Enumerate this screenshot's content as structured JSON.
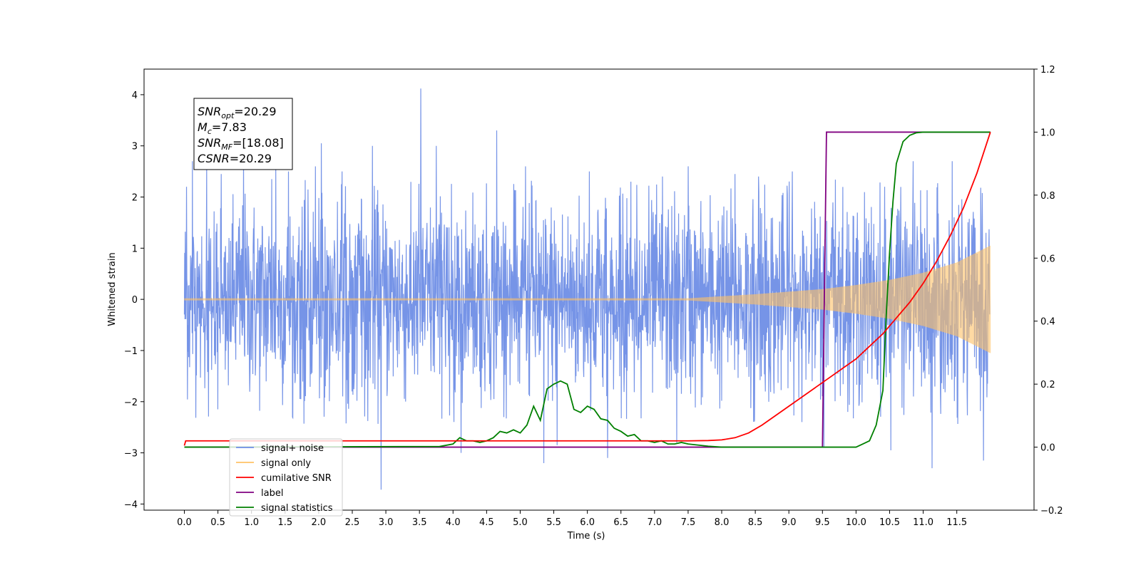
{
  "chart_data": {
    "type": "line",
    "xlabel": "Time (s)",
    "ylabel": "Whitened strain",
    "xlim": [
      -0.6,
      12.65
    ],
    "ylim": [
      -4.12,
      4.5
    ],
    "y2lim": [
      -0.2,
      1.2
    ],
    "x_ticks": [
      "0.0",
      "0.5",
      "1.0",
      "1.5",
      "2.0",
      "2.5",
      "3.0",
      "3.5",
      "4.0",
      "4.5",
      "5.0",
      "5.5",
      "6.0",
      "6.5",
      "7.0",
      "7.5",
      "8.0",
      "8.5",
      "9.0",
      "9.5",
      "10.0",
      "10.5",
      "11.0",
      "11.5"
    ],
    "y_ticks": [
      "4",
      "3",
      "2",
      "1",
      "0",
      "−1",
      "−2",
      "−3",
      "−4"
    ],
    "y2_ticks": [
      "1.2",
      "1.0",
      "0.8",
      "0.6",
      "0.4",
      "0.2",
      "0.0",
      "−0.2"
    ],
    "annotation": {
      "lines": [
        {
          "pre": "SNR",
          "sub": "opt",
          "post": "=20.29"
        },
        {
          "pre": "M",
          "sub": "c",
          "post": "=7.83"
        },
        {
          "pre": "SNR",
          "sub": "MF",
          "post": "=[18.08]"
        },
        {
          "pre": "CSNR",
          "sub": "",
          "post": "=20.29"
        }
      ]
    },
    "legend": {
      "position": "lower-left",
      "entries": [
        {
          "label": "signal+ noise",
          "color": "#6f8ee6"
        },
        {
          "label": "signal only",
          "color": "#ffc266"
        },
        {
          "label": "cumilative SNR",
          "color": "#ff0000"
        },
        {
          "label": "label",
          "color": "#800080"
        },
        {
          "label": "signal statistics",
          "color": "#008000"
        }
      ]
    },
    "series": [
      {
        "name": "signal+ noise",
        "axis": "left",
        "color": "#6f8ee6",
        "noise_band": {
          "x_start": 0.0,
          "x_end": 11.99,
          "typical_sd": 1.0,
          "max": 4.12,
          "min": -3.72
        },
        "spikes": [
          [
            0.03,
            2.2
          ],
          [
            0.12,
            2.7
          ],
          [
            0.33,
            2.6
          ],
          [
            0.55,
            2.45
          ],
          [
            0.88,
            2.8
          ],
          [
            1.3,
            2.35
          ],
          [
            1.36,
            2.6
          ],
          [
            1.55,
            2.5
          ],
          [
            1.95,
            2.6
          ],
          [
            2.04,
            3.05
          ],
          [
            2.35,
            2.5
          ],
          [
            2.8,
            3.0
          ],
          [
            2.93,
            -3.72
          ],
          [
            3.52,
            4.12
          ],
          [
            3.75,
            3.0
          ],
          [
            4.12,
            -3.0
          ],
          [
            4.65,
            3.3
          ],
          [
            5.08,
            2.6
          ],
          [
            5.35,
            -3.2
          ],
          [
            5.55,
            -2.85
          ],
          [
            6.03,
            2.5
          ],
          [
            6.3,
            -3.1
          ],
          [
            6.65,
            2.3
          ],
          [
            7.12,
            2.4
          ],
          [
            7.33,
            -2.8
          ],
          [
            7.5,
            2.6
          ],
          [
            8.2,
            2.45
          ],
          [
            8.55,
            2.4
          ],
          [
            9.05,
            2.5
          ],
          [
            9.52,
            -2.9
          ],
          [
            10.52,
            -2.95
          ],
          [
            10.85,
            2.7
          ],
          [
            11.13,
            -3.3
          ],
          [
            11.43,
            2.7
          ],
          [
            11.9,
            -3.15
          ]
        ]
      },
      {
        "name": "signal only",
        "axis": "left",
        "color": "#ffc266",
        "envelope": {
          "x": [
            0.0,
            7.5,
            8.0,
            8.5,
            9.0,
            9.5,
            10.0,
            10.5,
            11.0,
            11.5,
            12.0
          ],
          "amp": [
            0.02,
            0.02,
            0.06,
            0.1,
            0.15,
            0.2,
            0.28,
            0.38,
            0.52,
            0.72,
            1.05
          ]
        }
      },
      {
        "name": "cumilative SNR",
        "axis": "right",
        "color": "#ff0000",
        "x": [
          0.0,
          0.02,
          7.5,
          7.8,
          8.0,
          8.2,
          8.4,
          8.6,
          8.8,
          9.0,
          9.2,
          9.4,
          9.6,
          9.8,
          10.0,
          10.2,
          10.4,
          10.6,
          10.8,
          11.0,
          11.2,
          11.4,
          11.6,
          11.8,
          12.0
        ],
        "y": [
          0.005,
          0.02,
          0.02,
          0.021,
          0.023,
          0.03,
          0.045,
          0.07,
          0.1,
          0.13,
          0.16,
          0.19,
          0.22,
          0.25,
          0.28,
          0.32,
          0.36,
          0.41,
          0.46,
          0.52,
          0.59,
          0.67,
          0.76,
          0.87,
          1.0
        ]
      },
      {
        "name": "label",
        "axis": "right",
        "color": "#800080",
        "x": [
          0.0,
          9.5,
          9.56,
          12.0
        ],
        "y": [
          0.0,
          0.0,
          1.0,
          1.0
        ]
      },
      {
        "name": "signal statistics",
        "axis": "right",
        "color": "#008000",
        "x": [
          0.0,
          3.8,
          4.0,
          4.1,
          4.2,
          4.3,
          4.4,
          4.5,
          4.6,
          4.7,
          4.8,
          4.9,
          5.0,
          5.1,
          5.2,
          5.3,
          5.4,
          5.5,
          5.6,
          5.7,
          5.8,
          5.9,
          6.0,
          6.1,
          6.2,
          6.3,
          6.4,
          6.5,
          6.6,
          6.7,
          6.8,
          6.9,
          7.0,
          7.1,
          7.2,
          7.3,
          7.4,
          7.5,
          7.8,
          8.0,
          10.0,
          10.1,
          10.2,
          10.3,
          10.4,
          10.45,
          10.5,
          10.55,
          10.6,
          10.7,
          10.8,
          10.9,
          11.0,
          12.0
        ],
        "y": [
          0.0,
          0.002,
          0.01,
          0.03,
          0.02,
          0.02,
          0.015,
          0.02,
          0.03,
          0.05,
          0.045,
          0.055,
          0.045,
          0.07,
          0.13,
          0.085,
          0.185,
          0.2,
          0.21,
          0.2,
          0.12,
          0.11,
          0.13,
          0.12,
          0.09,
          0.085,
          0.06,
          0.05,
          0.035,
          0.04,
          0.02,
          0.02,
          0.015,
          0.02,
          0.01,
          0.01,
          0.015,
          0.01,
          0.003,
          0.0,
          0.0,
          0.01,
          0.02,
          0.07,
          0.18,
          0.42,
          0.62,
          0.78,
          0.9,
          0.97,
          0.99,
          0.998,
          1.0,
          1.0
        ]
      }
    ]
  }
}
